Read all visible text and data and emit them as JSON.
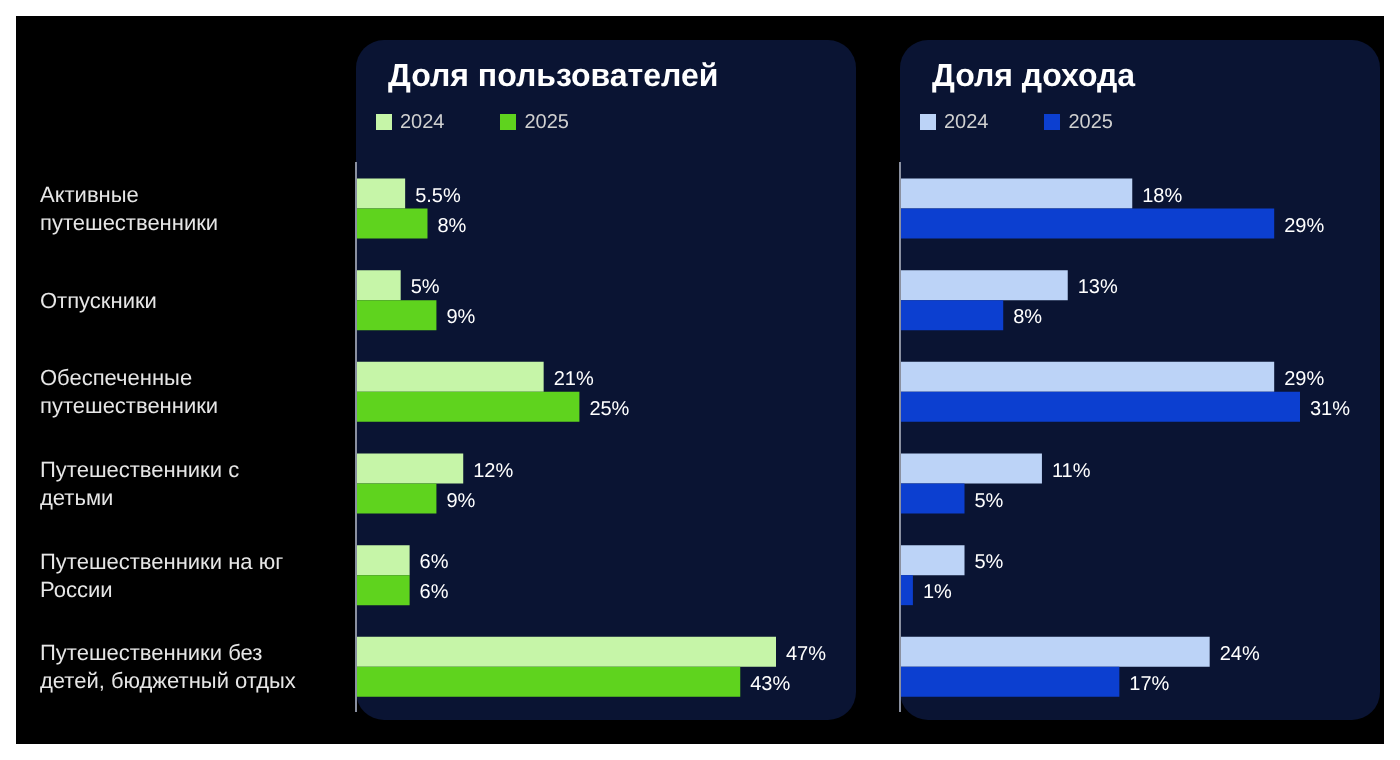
{
  "chart_data": [
    {
      "type": "bar",
      "orientation": "horizontal",
      "title": "Доля пользователей",
      "categories": [
        "Активные путешественники",
        "Отпускники",
        "Обеспеченные путешественники",
        "Путешественники с детьми",
        "Путешественники на юг России",
        "Путешественники без детей, бюджетный отдых"
      ],
      "series": [
        {
          "name": "2024",
          "color": "#c6f5a8",
          "values": [
            5.5,
            5,
            21,
            12,
            6,
            47
          ],
          "value_labels": [
            "5.5%",
            "5%",
            "21%",
            "12%",
            "6%",
            "47%"
          ]
        },
        {
          "name": "2025",
          "color": "#5fd31e",
          "values": [
            8,
            9,
            25,
            9,
            6,
            43
          ],
          "value_labels": [
            "8%",
            "9%",
            "25%",
            "9%",
            "6%",
            "43%"
          ]
        }
      ],
      "legend": "top left",
      "tick_labels": "y"
    },
    {
      "type": "bar",
      "orientation": "horizontal",
      "title": "Доля дохода",
      "categories": [
        null,
        null,
        null,
        null,
        null,
        null
      ],
      "series": [
        {
          "name": "2024",
          "color": "#bcd3f7",
          "values": [
            18,
            13,
            29,
            11,
            5,
            24
          ],
          "value_labels": [
            "18%",
            "13%",
            "29%",
            "11%",
            "5%",
            "24%"
          ]
        },
        {
          "name": "2025",
          "color": "#0c3fd0",
          "values": [
            29,
            8,
            31,
            5,
            1,
            17
          ],
          "value_labels": [
            "29%",
            "8%",
            "31%",
            "5%",
            "1%",
            "17%"
          ]
        }
      ],
      "legend": "top left",
      "tick_labels": false
    }
  ]
}
